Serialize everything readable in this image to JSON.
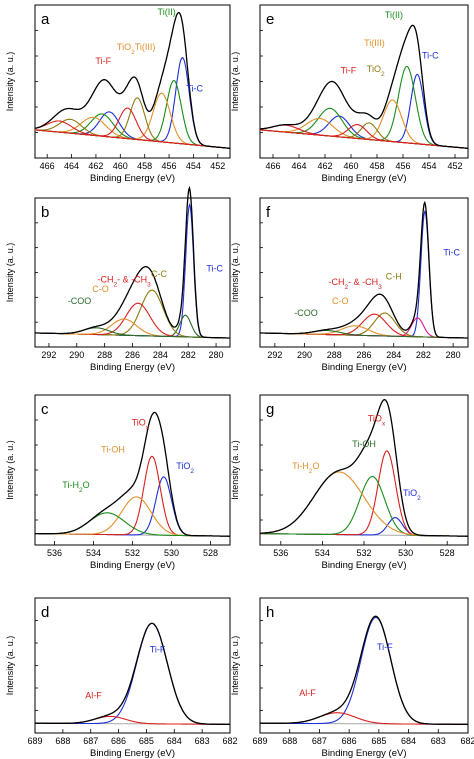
{
  "colors": {
    "envelope": "#000000",
    "background": "#a8a8a8",
    "blue": "#1e2fd6",
    "red": "#d8201d",
    "green": "#1a8c1a",
    "orange": "#e0902a",
    "olive": "#8c7a10",
    "purple": "#8b1e8b",
    "magenta": "#e4138f",
    "darkgreen": "#2a6a2a"
  },
  "chart_data": [
    {
      "panel": "a",
      "type": "line",
      "xlabel": "Binding Energy (eV)",
      "ylabel": "Intensity (a. u.)",
      "x_range": [
        467,
        451
      ],
      "x_ticks": [
        "466",
        "464",
        "462",
        "460",
        "458",
        "456",
        "454",
        "452"
      ],
      "background_level": 0.14,
      "peaks": [
        {
          "name": "Ti-C",
          "color": "blue",
          "center": 454.9,
          "width": 0.55,
          "height": 0.62
        },
        {
          "name": "Ti-C",
          "color": "blue",
          "center": 460.9,
          "width": 0.8,
          "height": 0.18
        },
        {
          "name": "Ti(II)",
          "color": "green",
          "center": 455.6,
          "width": 0.6,
          "height": 0.45
        },
        {
          "name": "Ti(II)",
          "color": "green",
          "center": 461.5,
          "width": 0.9,
          "height": 0.16
        },
        {
          "name": "Ti(III)",
          "color": "orange",
          "center": 456.6,
          "width": 0.7,
          "height": 0.35
        },
        {
          "name": "Ti(III)",
          "color": "orange",
          "center": 462.2,
          "width": 1.0,
          "height": 0.13
        },
        {
          "name": "TiO2",
          "color": "olive",
          "center": 458.6,
          "width": 0.6,
          "height": 0.3
        },
        {
          "name": "TiO2",
          "color": "olive",
          "center": 464.1,
          "width": 0.9,
          "height": 0.1
        },
        {
          "name": "Ti-F",
          "color": "red",
          "center": 459.4,
          "width": 0.7,
          "height": 0.22
        },
        {
          "name": "Ti-F",
          "color": "red",
          "center": 465.0,
          "width": 1.0,
          "height": 0.08
        }
      ],
      "annotations": [
        {
          "text": "Ti(II)",
          "color": "green",
          "x": 456.2,
          "y": 0.97
        },
        {
          "text": "TiO",
          "sub": "2",
          "after": "Ti(III)",
          "color": "orange",
          "x": 458.7,
          "y": 0.72
        },
        {
          "text": "Ti-F",
          "color": "red",
          "x": 461.4,
          "y": 0.62
        },
        {
          "text": "Ti-C",
          "color": "blue",
          "x": 453.9,
          "y": 0.42
        }
      ]
    },
    {
      "panel": "b",
      "type": "line",
      "xlabel": "Binding Energy (eV)",
      "ylabel": "Intensity (a. u.)",
      "x_range": [
        293,
        279
      ],
      "x_ticks": [
        "292",
        "290",
        "288",
        "286",
        "284",
        "282",
        "280"
      ],
      "background_level": 0.04,
      "peaks": [
        {
          "name": "Ti-C",
          "color": "blue",
          "center": 281.9,
          "width": 0.28,
          "height": 0.98
        },
        {
          "name": "C-C",
          "color": "darkgreen",
          "center": 282.2,
          "width": 0.4,
          "height": 0.16
        },
        {
          "name": "C-C",
          "color": "olive",
          "center": 284.6,
          "width": 0.8,
          "height": 0.34
        },
        {
          "name": "-CH2- & -CH3",
          "color": "red",
          "center": 285.6,
          "width": 0.85,
          "height": 0.24
        },
        {
          "name": "C-O",
          "color": "orange",
          "center": 286.6,
          "width": 0.9,
          "height": 0.12
        },
        {
          "name": "-COO",
          "color": "darkgreen",
          "center": 288.6,
          "width": 0.9,
          "height": 0.05
        }
      ],
      "annotations": [
        {
          "text": "Ti-C",
          "color": "blue",
          "x": 280.1,
          "y": 0.5
        },
        {
          "text": "C-C",
          "color": "olive",
          "x": 284.1,
          "y": 0.46
        },
        {
          "text": "-CH",
          "sub": "2",
          "after": "- & -CH",
          "sub2": "3",
          "color": "red",
          "x": 286.6,
          "y": 0.42
        },
        {
          "text": "C-O",
          "color": "orange",
          "x": 288.3,
          "y": 0.35
        },
        {
          "text": "-COO",
          "color": "darkgreen",
          "x": 289.8,
          "y": 0.26
        }
      ]
    },
    {
      "panel": "c",
      "type": "line",
      "xlabel": "Binding Energy (eV)",
      "ylabel": "Intensity (a. u.)",
      "x_range": [
        537,
        527
      ],
      "x_ticks": [
        "536",
        "534",
        "532",
        "530",
        "528"
      ],
      "background_level": 0.02,
      "peaks": [
        {
          "name": "TiO2",
          "color": "blue",
          "center": 530.4,
          "width": 0.4,
          "height": 0.43
        },
        {
          "name": "TiOx",
          "color": "red",
          "center": 531.0,
          "width": 0.42,
          "height": 0.58
        },
        {
          "name": "Ti-OH",
          "color": "orange",
          "center": 531.8,
          "width": 0.75,
          "height": 0.28
        },
        {
          "name": "Ti-H2O",
          "color": "green",
          "center": 533.3,
          "width": 0.9,
          "height": 0.16
        }
      ],
      "annotations": [
        {
          "text": "TiO",
          "sub": "x",
          "color": "red",
          "x": 531.6,
          "y": 0.82
        },
        {
          "text": "Ti-OH",
          "color": "orange",
          "x": 533.0,
          "y": 0.62
        },
        {
          "text": "TiO",
          "sub": "2",
          "color": "blue",
          "x": 529.3,
          "y": 0.5
        },
        {
          "text": "Ti-H",
          "sub": "2",
          "after": "O",
          "color": "green",
          "x": 534.9,
          "y": 0.36
        }
      ]
    },
    {
      "panel": "d",
      "type": "line",
      "xlabel": "Binding Energy (eV)",
      "ylabel": "Intensity (a. u.)",
      "x_range": [
        689,
        682
      ],
      "x_ticks": [
        "689",
        "688",
        "687",
        "686",
        "685",
        "684",
        "683",
        "682"
      ],
      "background_level": 0.01,
      "peaks": [
        {
          "name": "Ti-F",
          "color": "blue",
          "center": 684.8,
          "width": 0.55,
          "height": 0.83
        },
        {
          "name": "Al-F",
          "color": "red",
          "center": 686.3,
          "width": 0.55,
          "height": 0.06
        }
      ],
      "annotations": [
        {
          "text": "Ti-F",
          "color": "blue",
          "x": 684.6,
          "y": 0.6
        },
        {
          "text": "Al-F",
          "color": "red",
          "x": 686.9,
          "y": 0.22
        }
      ]
    },
    {
      "panel": "e",
      "type": "line",
      "xlabel": "Binding Energy (eV)",
      "ylabel": "Intensity (a. u.)",
      "x_range": [
        467,
        451
      ],
      "x_ticks": [
        "466",
        "464",
        "462",
        "460",
        "458",
        "456",
        "454",
        "452"
      ],
      "background_level": 0.14,
      "peaks": [
        {
          "name": "Ti-C",
          "color": "blue",
          "center": 454.9,
          "width": 0.5,
          "height": 0.5
        },
        {
          "name": "Ti-C",
          "color": "blue",
          "center": 460.9,
          "width": 0.8,
          "height": 0.15
        },
        {
          "name": "Ti(II)",
          "color": "green",
          "center": 455.7,
          "width": 0.65,
          "height": 0.55
        },
        {
          "name": "Ti(II)",
          "color": "green",
          "center": 461.6,
          "width": 0.9,
          "height": 0.2
        },
        {
          "name": "Ti(III)",
          "color": "orange",
          "center": 456.8,
          "width": 0.7,
          "height": 0.3
        },
        {
          "name": "Ti(III)",
          "color": "orange",
          "center": 462.4,
          "width": 1.0,
          "height": 0.12
        },
        {
          "name": "TiO2",
          "color": "olive",
          "center": 458.6,
          "width": 0.6,
          "height": 0.12
        },
        {
          "name": "Ti-F",
          "color": "red",
          "center": 459.5,
          "width": 0.7,
          "height": 0.1
        },
        {
          "name": "Ti-F",
          "color": "red",
          "center": 465.0,
          "width": 1.0,
          "height": 0.05
        }
      ],
      "annotations": [
        {
          "text": "Ti(II)",
          "color": "green",
          "x": 456.7,
          "y": 0.95
        },
        {
          "text": "Ti(III)",
          "color": "orange",
          "x": 458.2,
          "y": 0.75
        },
        {
          "text": "TiO",
          "sub": "2",
          "color": "olive",
          "x": 458.1,
          "y": 0.56
        },
        {
          "text": "Ti-F",
          "color": "red",
          "x": 460.2,
          "y": 0.55
        },
        {
          "text": "Ti-C",
          "color": "blue",
          "x": 453.9,
          "y": 0.66
        }
      ]
    },
    {
      "panel": "f",
      "type": "line",
      "xlabel": "Binding Energy (eV)",
      "ylabel": "Intensity (a. u.)",
      "x_range": [
        293,
        279
      ],
      "x_ticks": [
        "292",
        "290",
        "288",
        "286",
        "284",
        "282",
        "280"
      ],
      "background_level": 0.04,
      "peaks": [
        {
          "name": "Ti-C",
          "color": "blue",
          "center": 281.9,
          "width": 0.27,
          "height": 0.93
        },
        {
          "name": "C-C",
          "color": "magenta",
          "center": 282.4,
          "width": 0.4,
          "height": 0.14
        },
        {
          "name": "C-H",
          "color": "olive",
          "center": 284.6,
          "width": 0.7,
          "height": 0.17
        },
        {
          "name": "-CH2- & -CH3",
          "color": "red",
          "center": 285.3,
          "width": 0.8,
          "height": 0.16
        },
        {
          "name": "C-O",
          "color": "orange",
          "center": 286.6,
          "width": 0.9,
          "height": 0.07
        },
        {
          "name": "-COO",
          "color": "darkgreen",
          "center": 288.5,
          "width": 0.9,
          "height": 0.03
        }
      ],
      "annotations": [
        {
          "text": "Ti-C",
          "color": "blue",
          "x": 280.1,
          "y": 0.62
        },
        {
          "text": "C-H",
          "color": "olive",
          "x": 284.0,
          "y": 0.44
        },
        {
          "text": "-CH",
          "sub": "2",
          "after": "- & -CH",
          "sub2": "3",
          "color": "red",
          "x": 286.6,
          "y": 0.4
        },
        {
          "text": "C-O",
          "color": "orange",
          "x": 287.6,
          "y": 0.26
        },
        {
          "text": "-COO",
          "color": "darkgreen",
          "x": 289.9,
          "y": 0.17
        }
      ]
    },
    {
      "panel": "g",
      "type": "line",
      "xlabel": "Binding Energy (eV)",
      "ylabel": "Intensity (a. u.)",
      "x_range": [
        537,
        527
      ],
      "x_ticks": [
        "536",
        "534",
        "532",
        "530",
        "528"
      ],
      "background_level": 0.02,
      "peaks": [
        {
          "name": "TiO2",
          "color": "blue",
          "center": 530.5,
          "width": 0.35,
          "height": 0.13
        },
        {
          "name": "TiOx",
          "color": "red",
          "center": 530.9,
          "width": 0.42,
          "height": 0.62
        },
        {
          "name": "Ti-OH",
          "color": "green",
          "center": 531.6,
          "width": 0.6,
          "height": 0.43
        },
        {
          "name": "Ti-H2O",
          "color": "orange",
          "center": 533.2,
          "width": 1.2,
          "height": 0.46
        }
      ],
      "annotations": [
        {
          "text": "TiO",
          "sub": "x",
          "color": "red",
          "x": 531.4,
          "y": 0.85
        },
        {
          "text": "Ti-OH",
          "color": "darkgreen",
          "x": 532.0,
          "y": 0.66
        },
        {
          "text": "Ti-H",
          "sub": "2",
          "after": "O",
          "color": "orange",
          "x": 534.8,
          "y": 0.5
        },
        {
          "text": "TiO",
          "sub": "2",
          "color": "blue",
          "x": 529.7,
          "y": 0.3
        }
      ]
    },
    {
      "panel": "h",
      "type": "line",
      "xlabel": "Binding Energy (eV)",
      "ylabel": "Intensity (a. u.)",
      "x_range": [
        689,
        682
      ],
      "x_ticks": [
        "689",
        "688",
        "687",
        "686",
        "685",
        "684",
        "683",
        "682"
      ],
      "background_level": 0.01,
      "peaks": [
        {
          "name": "Ti-F",
          "color": "blue",
          "center": 685.1,
          "width": 0.5,
          "height": 0.88
        },
        {
          "name": "Al-F",
          "color": "red",
          "center": 686.4,
          "width": 0.6,
          "height": 0.09
        }
      ],
      "annotations": [
        {
          "text": "Ti-F",
          "color": "blue",
          "x": 684.8,
          "y": 0.62
        },
        {
          "text": "Al-F",
          "color": "red",
          "x": 687.4,
          "y": 0.24
        }
      ]
    }
  ]
}
